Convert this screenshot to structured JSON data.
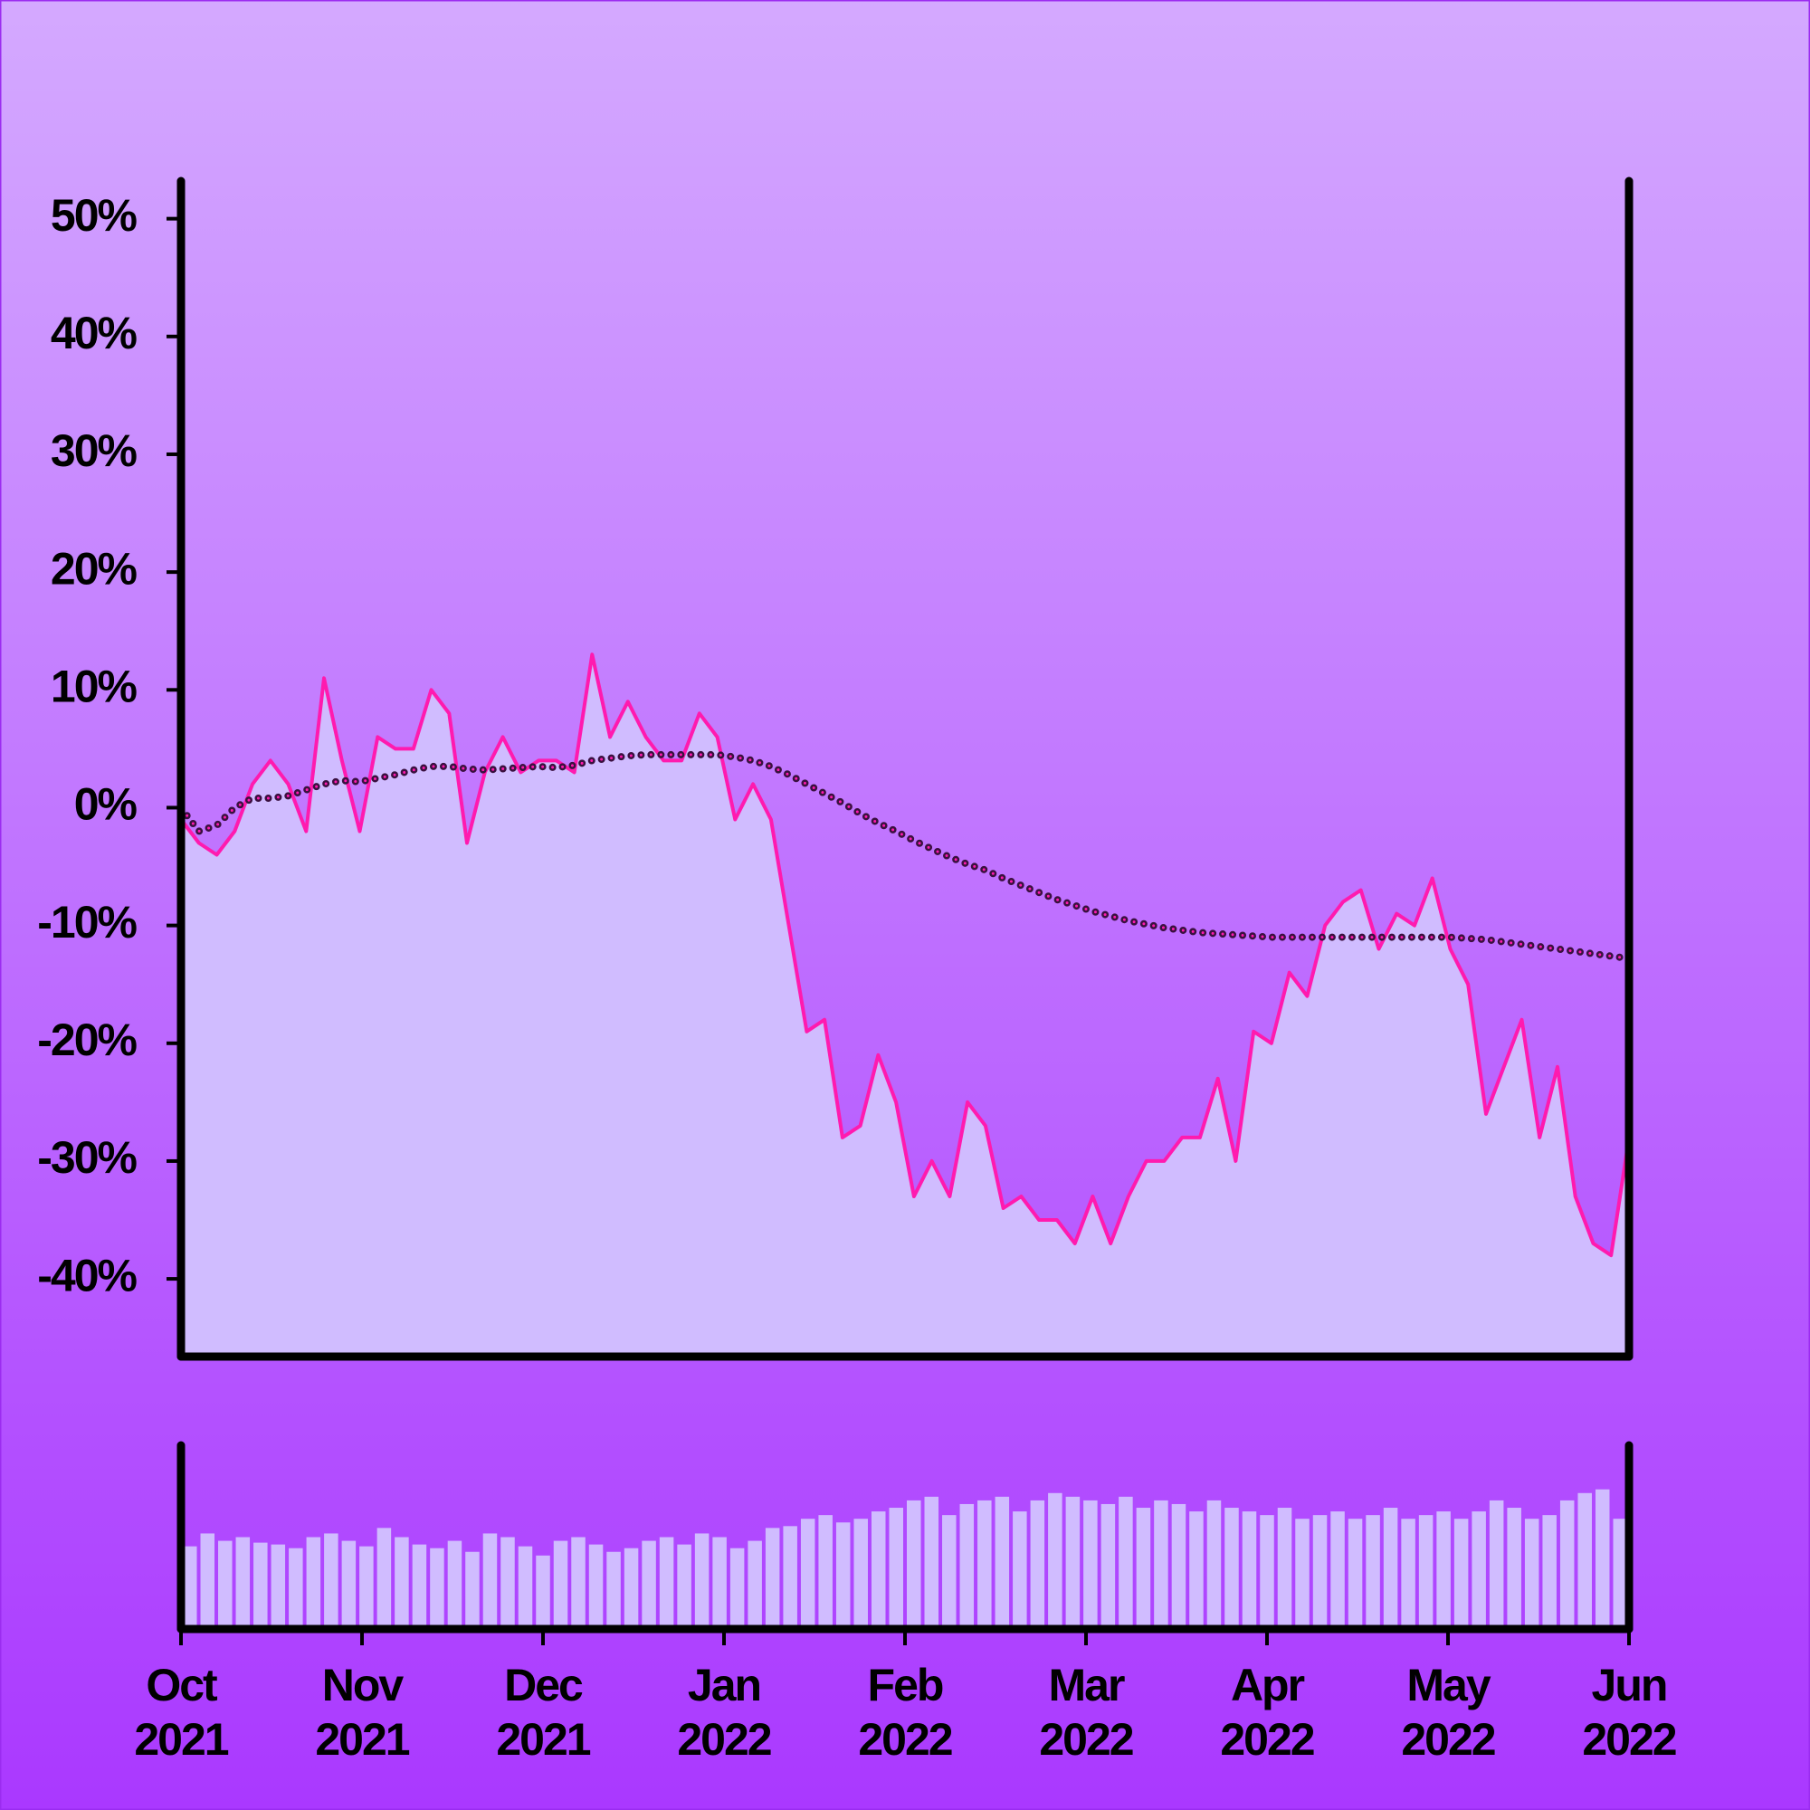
{
  "chart_data": {
    "type": "line",
    "xlim": [
      "2021-10",
      "2022-06"
    ],
    "xticks": [
      {
        "value": "2021-10",
        "label": "Oct 2021"
      },
      {
        "value": "2021-11",
        "label": "Nov 2021"
      },
      {
        "value": "2021-12",
        "label": "Dec 2021"
      },
      {
        "value": "2022-01",
        "label": "Jan 2022"
      },
      {
        "value": "2022-02",
        "label": "Feb 2022"
      },
      {
        "value": "2022-03",
        "label": "Mar 2022"
      },
      {
        "value": "2022-04",
        "label": "Apr 2022"
      },
      {
        "value": "2022-05",
        "label": "May 2022"
      },
      {
        "value": "2022-06",
        "label": "Jun 2022"
      }
    ],
    "ylim": [
      -46.6,
      53.2
    ],
    "yticks": [
      {
        "value": 50,
        "label": "50%"
      },
      {
        "value": 40,
        "label": "40%"
      },
      {
        "value": 30,
        "label": "30%"
      },
      {
        "value": 20,
        "label": "20%"
      },
      {
        "value": 10,
        "label": "10%"
      },
      {
        "value": 0,
        "label": "0%"
      },
      {
        "value": -10,
        "label": "-10%"
      },
      {
        "value": -20,
        "label": "-20%"
      },
      {
        "value": -30,
        "label": "-30%"
      },
      {
        "value": -40,
        "label": "-40%"
      }
    ],
    "y2lim": [
      0,
      100
    ],
    "series": [
      {
        "color": "#ff1aaf",
        "fill": "#d0bcff",
        "values": [
          -1,
          -3,
          -4,
          -2,
          2,
          4,
          2,
          -2,
          11,
          4,
          -2,
          6,
          5,
          5,
          10,
          8,
          -3,
          3,
          6,
          3,
          4,
          4,
          3,
          13,
          6,
          9,
          6,
          4,
          4,
          8,
          6,
          -1,
          2,
          -1,
          -10,
          -19,
          -18,
          -28,
          -27,
          -21,
          -25,
          -33,
          -30,
          -33,
          -25,
          -27,
          -34,
          -33,
          -35,
          -35,
          -37,
          -33,
          -37,
          -33,
          -30,
          -30,
          -28,
          -28,
          -23,
          -30,
          -19,
          -20,
          -14,
          -16,
          -10,
          -8,
          -7,
          -12,
          -9,
          -10,
          -6,
          -12,
          -15,
          -26,
          -22,
          -18,
          -28,
          -22,
          -33,
          -37,
          -38,
          -28
        ]
      },
      {
        "color": "#3a1040",
        "style": "dotted",
        "values": [
          0,
          -2,
          -1.5,
          0,
          0.8,
          0.8,
          1,
          1.5,
          2,
          2.3,
          2.2,
          2.5,
          2.8,
          3.2,
          3.5,
          3.5,
          3.3,
          3.2,
          3.3,
          3.4,
          3.5,
          3.4,
          3.6,
          4,
          4.2,
          4.4,
          4.5,
          4.5,
          4.5,
          4.5,
          4.5,
          4.3,
          4,
          3.5,
          2.8,
          2,
          1.2,
          0.4,
          -0.5,
          -1.3,
          -2,
          -2.8,
          -3.5,
          -4.2,
          -4.8,
          -5.3,
          -6,
          -6.6,
          -7.2,
          -7.8,
          -8.3,
          -8.8,
          -9.2,
          -9.6,
          -9.9,
          -10.2,
          -10.4,
          -10.6,
          -10.7,
          -10.8,
          -10.9,
          -11,
          -11,
          -11,
          -11,
          -11,
          -11,
          -11,
          -11,
          -11,
          -11,
          -11,
          -11.1,
          -11.2,
          -11.4,
          -11.6,
          -11.8,
          -12,
          -12.2,
          -12.4,
          -12.6,
          -12.8
        ]
      },
      {
        "color": "#d0bcff",
        "axis": "y2",
        "values": [
          45,
          52,
          48,
          50,
          47,
          46,
          44,
          50,
          52,
          48,
          45,
          55,
          50,
          46,
          44,
          48,
          42,
          52,
          50,
          45,
          40,
          48,
          50,
          46,
          42,
          44,
          48,
          50,
          46,
          52,
          50,
          44,
          48,
          55,
          56,
          60,
          62,
          58,
          60,
          64,
          66,
          70,
          72,
          62,
          68,
          70,
          72,
          64,
          70,
          74,
          72,
          70,
          68,
          72,
          66,
          70,
          68,
          64,
          70,
          66,
          64,
          62,
          66,
          60,
          62,
          64,
          60,
          62,
          66,
          60,
          62,
          64,
          60,
          64,
          70,
          66,
          60,
          62,
          70,
          74,
          76,
          60
        ]
      }
    ]
  }
}
